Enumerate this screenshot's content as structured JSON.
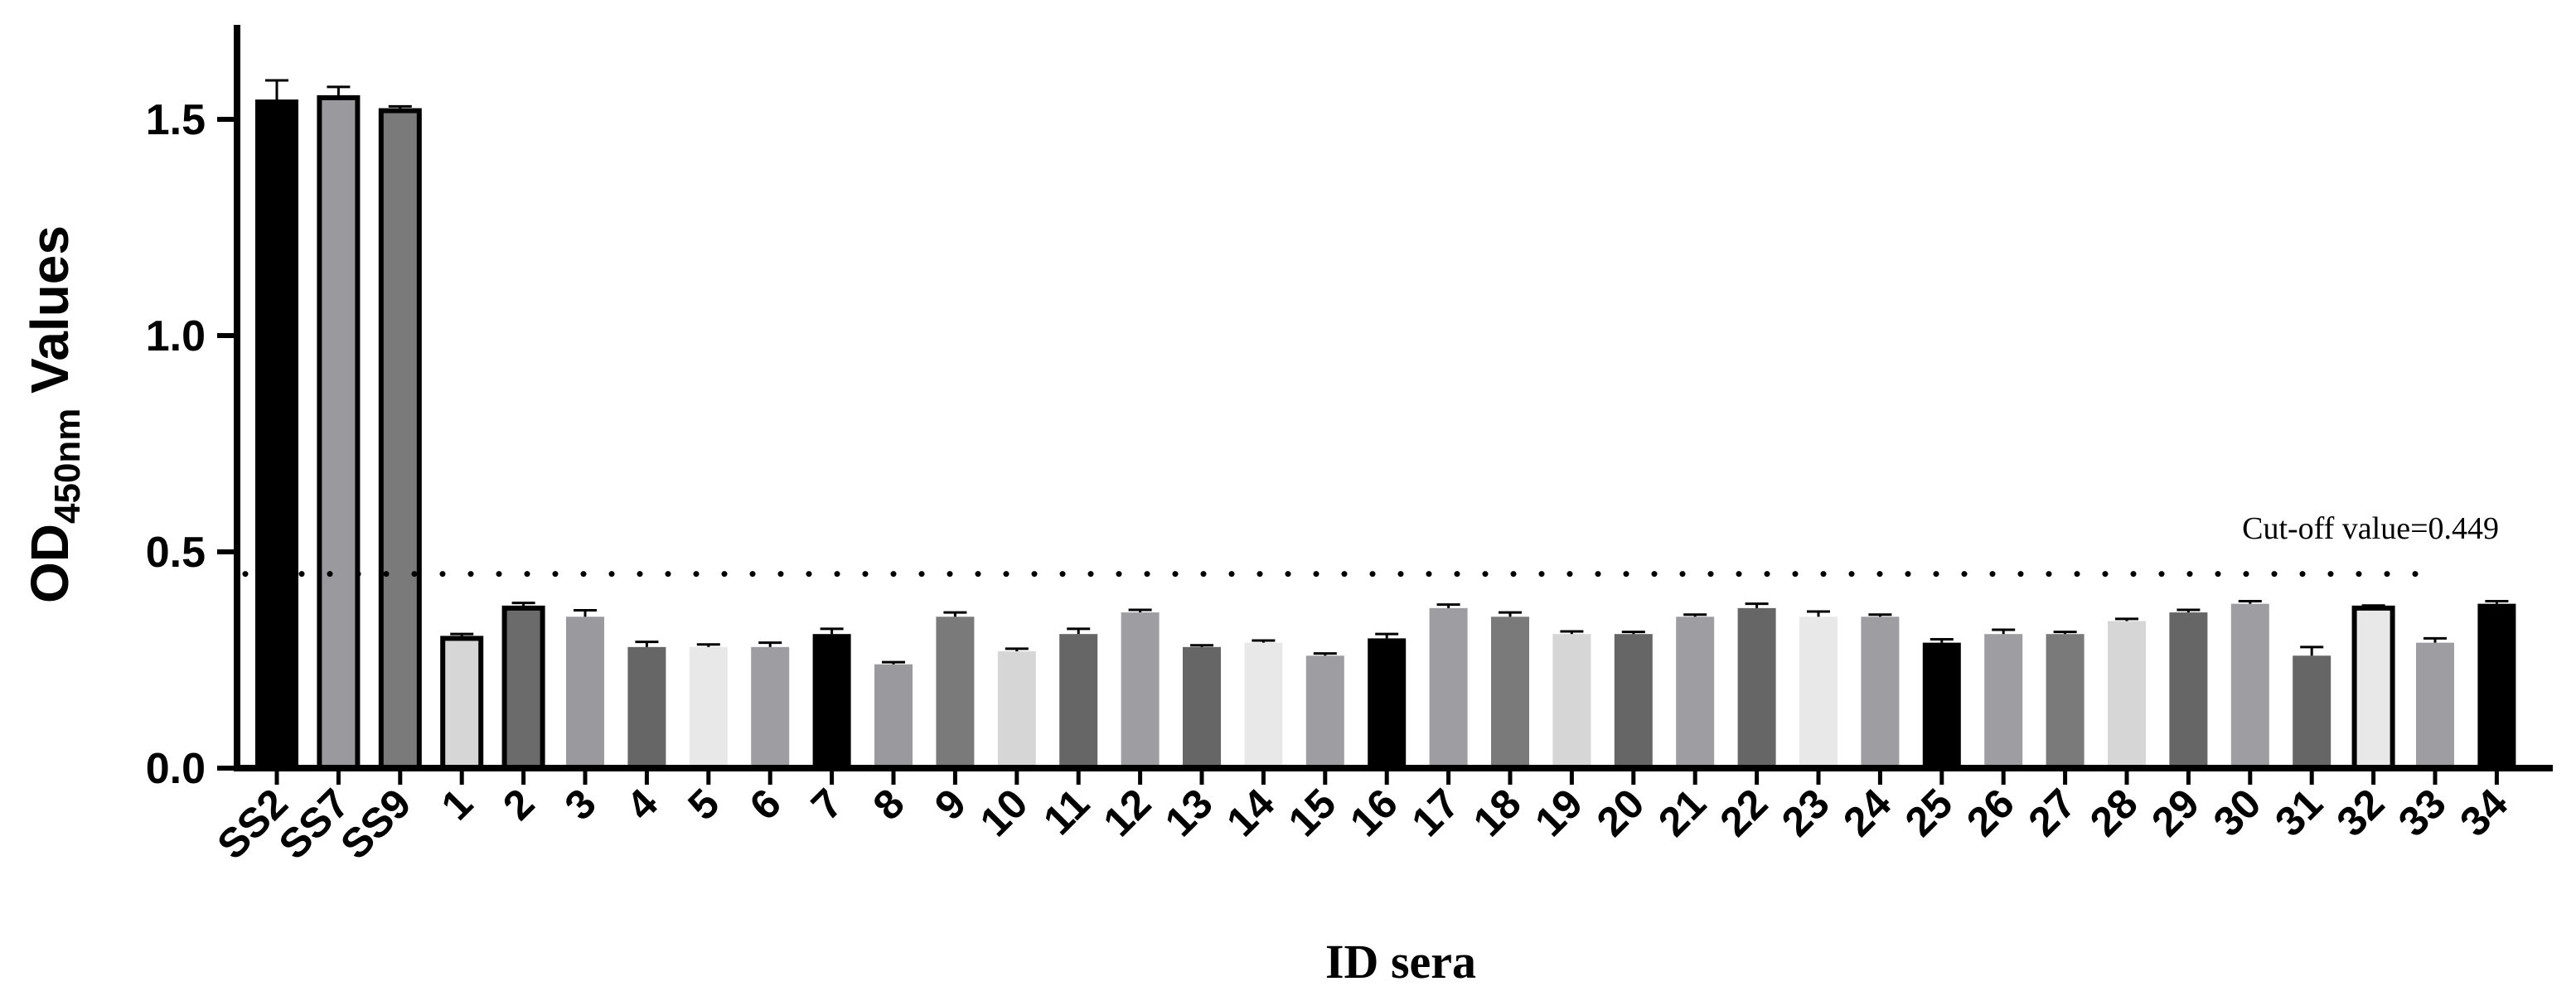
{
  "chart_data": {
    "type": "bar",
    "xlabel": "ID sera",
    "ylabel_main": "OD",
    "ylabel_sub": "450nm",
    "ylabel_rest": " Values",
    "ylim": [
      0,
      1.7
    ],
    "yticks": [
      0.0,
      0.5,
      1.0,
      1.5
    ],
    "ytick_labels": [
      "0.0",
      "0.5",
      "1.0",
      "1.5"
    ],
    "grid": false,
    "cutoff": {
      "value": 0.449,
      "label": "Cut-off value=0.449"
    },
    "categories": [
      "SS2",
      "SS7",
      "SS9",
      "1",
      "2",
      "3",
      "4",
      "5",
      "6",
      "7",
      "8",
      "9",
      "10",
      "11",
      "12",
      "13",
      "14",
      "15",
      "16",
      "17",
      "18",
      "19",
      "20",
      "21",
      "22",
      "23",
      "24",
      "25",
      "26",
      "27",
      "28",
      "29",
      "30",
      "31",
      "32",
      "33",
      "34"
    ],
    "values": [
      1.54,
      1.55,
      1.52,
      0.3,
      0.37,
      0.35,
      0.28,
      0.28,
      0.28,
      0.31,
      0.24,
      0.35,
      0.27,
      0.31,
      0.36,
      0.28,
      0.29,
      0.26,
      0.3,
      0.37,
      0.35,
      0.31,
      0.31,
      0.35,
      0.37,
      0.35,
      0.35,
      0.29,
      0.31,
      0.31,
      0.34,
      0.36,
      0.38,
      0.26,
      0.37,
      0.29,
      0.38
    ],
    "errors": [
      0.05,
      0.025,
      0.01,
      0.01,
      0.012,
      0.015,
      0.012,
      0.006,
      0.01,
      0.012,
      0.005,
      0.01,
      0.006,
      0.012,
      0.006,
      0.004,
      0.005,
      0.005,
      0.01,
      0.008,
      0.01,
      0.006,
      0.005,
      0.005,
      0.01,
      0.012,
      0.005,
      0.008,
      0.01,
      0.005,
      0.005,
      0.006,
      0.006,
      0.02,
      0.006,
      0.01,
      0.006
    ],
    "bar_colors": [
      "#000000",
      "#9a9a9e",
      "#7a7a7a",
      "#d6d6d6",
      "#6b6b6b",
      "#9a9a9e",
      "#666666",
      "#e8e8e8",
      "#9e9ea2",
      "#000000",
      "#9a9a9e",
      "#7a7a7a",
      "#d6d6d6",
      "#666666",
      "#9e9ea2",
      "#666666",
      "#e8e8e8",
      "#9e9ea2",
      "#000000",
      "#9e9ea2",
      "#7a7a7a",
      "#d6d6d6",
      "#666666",
      "#9e9ea2",
      "#666666",
      "#e8e8e8",
      "#9e9ea2",
      "#000000",
      "#9e9ea2",
      "#7a7a7a",
      "#d6d6d6",
      "#666666",
      "#9e9ea2",
      "#666666",
      "#e8e8e8",
      "#9e9ea2",
      "#000000"
    ],
    "outlined": [
      true,
      true,
      true,
      true,
      true,
      false,
      false,
      false,
      false,
      false,
      false,
      false,
      false,
      false,
      false,
      false,
      false,
      false,
      false,
      false,
      false,
      false,
      false,
      false,
      false,
      false,
      false,
      false,
      false,
      false,
      false,
      false,
      false,
      false,
      true,
      false,
      false
    ]
  }
}
